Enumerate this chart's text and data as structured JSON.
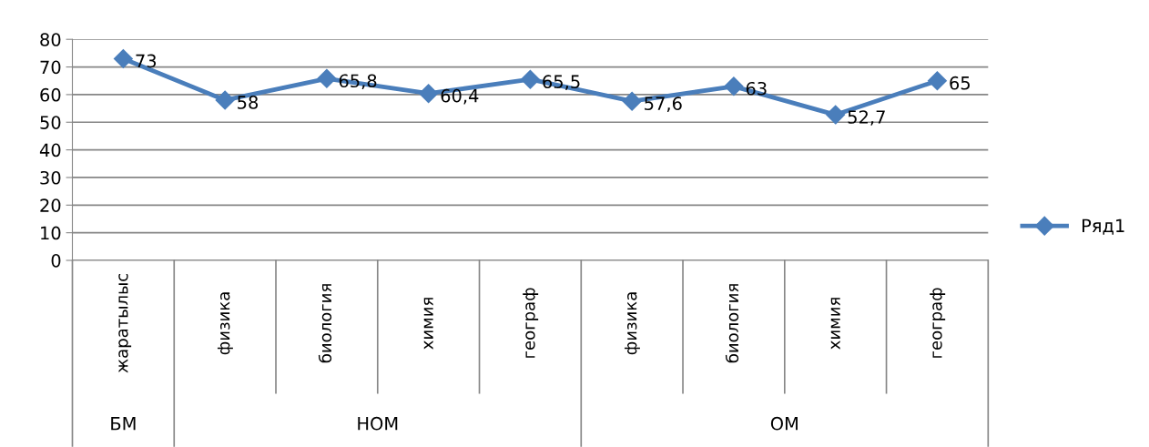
{
  "chart_data": {
    "type": "line",
    "categories": [
      "жаратылыс",
      "физика",
      "биология",
      "химия",
      "географ",
      "физика",
      "биология",
      "химия",
      "географ"
    ],
    "annotations": [
      "БМ",
      "НОМ",
      "ОМ"
    ],
    "series": [
      {
        "name": "Ряд1",
        "color": "#4a7ebb",
        "values": [
          73,
          58,
          65.8,
          60.4,
          65.5,
          57.6,
          63,
          52.7,
          65
        ],
        "value_labels": [
          "73",
          "58",
          "65,8",
          "60,4",
          "65,5",
          "57,6",
          "63",
          "52,7",
          "65"
        ]
      }
    ],
    "ylim": [
      0,
      80
    ],
    "yticks": [
      0,
      10,
      20,
      30,
      40,
      50,
      60,
      70,
      80
    ],
    "grid": "y",
    "legend": "right",
    "marker": "diamond",
    "line_style": "solid"
  }
}
